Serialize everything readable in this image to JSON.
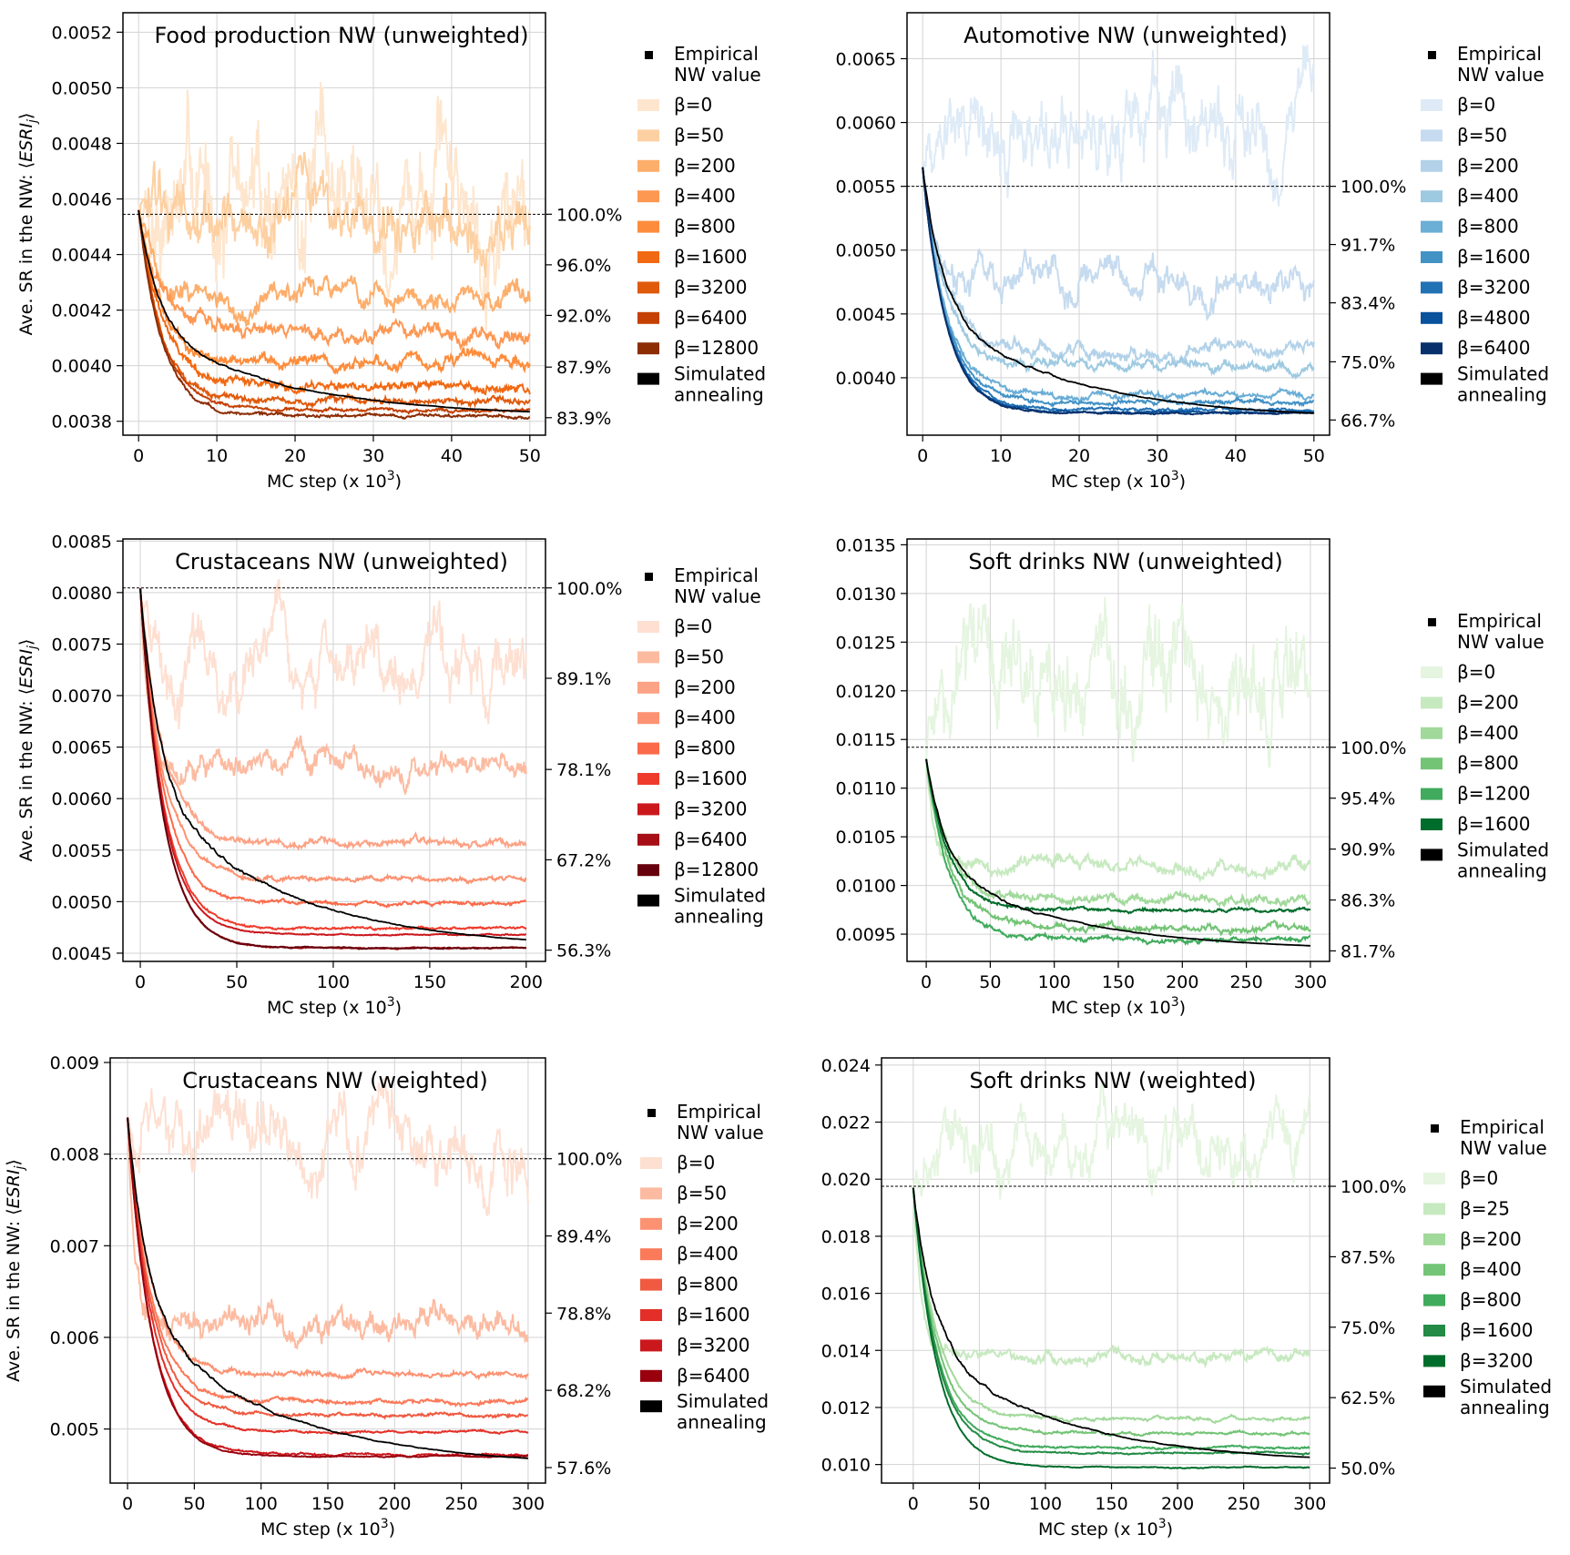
{
  "figure": {
    "ylabel_prefix": "Ave. SR in the NW: ⟨",
    "ylabel_math": "ESRI",
    "ylabel_sub": "j",
    "ylabel_suffix": "⟩",
    "xlabel_text": "MC step (x 10",
    "xlabel_exp": "3",
    "xlabel_close": ")",
    "beta_symbol": "β",
    "empirical_label": [
      "Empirical",
      "NW value"
    ],
    "sa_label": [
      "Simulated",
      "annealing"
    ]
  },
  "chart_data": [
    {
      "type": "line",
      "title": "Food production NW (unweighted)",
      "palette": "oranges",
      "xlim": [
        -2,
        52
      ],
      "ylim": [
        0.00375,
        0.00527
      ],
      "xticks": [
        "0",
        "10",
        "20",
        "30",
        "40",
        "50"
      ],
      "yticks": [
        "0.0038",
        "0.0040",
        "0.0042",
        "0.0044",
        "0.0046",
        "0.0048",
        "0.0050",
        "0.0052"
      ],
      "right_ticks": [
        {
          "label": "100.0%",
          "value": 0.004545
        },
        {
          "label": "96.0%",
          "value": 0.004363
        },
        {
          "label": "92.0%",
          "value": 0.004181
        },
        {
          "label": "87.9%",
          "value": 0.003995
        },
        {
          "label": "83.9%",
          "value": 0.003813
        }
      ],
      "empirical": 0.004545,
      "start": 0.00456,
      "xmax": 50,
      "series": [
        {
          "name": "β=0",
          "color": "#fee6ce",
          "plateau": 0.00462,
          "noise": 0.00036
        },
        {
          "name": "β=50",
          "color": "#fdd0a2",
          "plateau": 0.00451,
          "noise": 0.00018
        },
        {
          "name": "β=200",
          "color": "#fdae6b",
          "plateau": 0.00424,
          "noise": 7e-05
        },
        {
          "name": "β=400",
          "color": "#fd9853",
          "plateau": 0.00411,
          "noise": 5e-05
        },
        {
          "name": "β=800",
          "color": "#fd8d3c",
          "plateau": 0.00402,
          "noise": 4e-05
        },
        {
          "name": "β=1600",
          "color": "#f16913",
          "plateau": 0.00393,
          "noise": 3e-05
        },
        {
          "name": "β=3200",
          "color": "#e05a0c",
          "plateau": 0.00387,
          "noise": 2e-05
        },
        {
          "name": "β=6400",
          "color": "#c44103",
          "plateau": 0.00384,
          "noise": 1e-05
        },
        {
          "name": "β=12800",
          "color": "#8c2d04",
          "plateau": 0.00382,
          "noise": 1e-05
        }
      ],
      "simulated_annealing": {
        "color": "#000000",
        "end": 0.003815
      }
    },
    {
      "type": "line",
      "title": "Automotive NW (unweighted)",
      "palette": "blues",
      "xlim": [
        -2,
        52
      ],
      "ylim": [
        0.00355,
        0.00686
      ],
      "xticks": [
        "0",
        "10",
        "20",
        "30",
        "40",
        "50"
      ],
      "yticks": [
        "0.0040",
        "0.0045",
        "0.0050",
        "0.0055",
        "0.0060",
        "0.0065"
      ],
      "right_ticks": [
        {
          "label": "100.0%",
          "value": 0.0055
        },
        {
          "label": "91.7%",
          "value": 0.005044
        },
        {
          "label": "83.4%",
          "value": 0.004587
        },
        {
          "label": "75.0%",
          "value": 0.004125
        },
        {
          "label": "66.7%",
          "value": 0.003669
        }
      ],
      "empirical": 0.0055,
      "start": 0.00565,
      "xmax": 50,
      "series": [
        {
          "name": "β=0",
          "color": "#deebf7",
          "plateau": 0.006,
          "noise": 0.00055
        },
        {
          "name": "β=50",
          "color": "#c6dbef",
          "plateau": 0.00478,
          "noise": 0.00022
        },
        {
          "name": "β=200",
          "color": "#b3d2e9",
          "plateau": 0.00421,
          "noise": 9e-05
        },
        {
          "name": "β=400",
          "color": "#9ecae1",
          "plateau": 0.0041,
          "noise": 7e-05
        },
        {
          "name": "β=800",
          "color": "#6baed6",
          "plateau": 0.00386,
          "noise": 4e-05
        },
        {
          "name": "β=1600",
          "color": "#4292c6",
          "plateau": 0.00381,
          "noise": 3e-05
        },
        {
          "name": "β=3200",
          "color": "#2171b5",
          "plateau": 0.00375,
          "noise": 2e-05
        },
        {
          "name": "β=4800",
          "color": "#08519c",
          "plateau": 0.00373,
          "noise": 1e-05
        },
        {
          "name": "β=6400",
          "color": "#08306b",
          "plateau": 0.00372,
          "noise": 1e-05
        }
      ],
      "simulated_annealing": {
        "color": "#000000",
        "end": 0.00367
      }
    },
    {
      "type": "line",
      "title": "Crustaceans NW (unweighted)",
      "palette": "reds",
      "xlim": [
        -9,
        210
      ],
      "ylim": [
        0.00442,
        0.00852
      ],
      "xticks": [
        "0",
        "50",
        "100",
        "150",
        "200"
      ],
      "yticks": [
        "0.0045",
        "0.0050",
        "0.0055",
        "0.0060",
        "0.0065",
        "0.0070",
        "0.0075",
        "0.0080",
        "0.0085"
      ],
      "right_ticks": [
        {
          "label": "100.0%",
          "value": 0.008045
        },
        {
          "label": "89.1%",
          "value": 0.007168
        },
        {
          "label": "78.1%",
          "value": 0.006283
        },
        {
          "label": "67.2%",
          "value": 0.005406
        },
        {
          "label": "56.3%",
          "value": 0.004529
        }
      ],
      "empirical": 0.008045,
      "start": 0.00804,
      "xmax": 200,
      "series": [
        {
          "name": "β=0",
          "color": "#fee0d2",
          "plateau": 0.00725,
          "noise": 0.0005
        },
        {
          "name": "β=50",
          "color": "#fcbba1",
          "plateau": 0.00628,
          "noise": 0.0002
        },
        {
          "name": "β=200",
          "color": "#fca285",
          "plateau": 0.00556,
          "noise": 6e-05
        },
        {
          "name": "β=400",
          "color": "#fc9272",
          "plateau": 0.00522,
          "noise": 4e-05
        },
        {
          "name": "β=800",
          "color": "#fb6a4a",
          "plateau": 0.00498,
          "noise": 3e-05
        },
        {
          "name": "β=1600",
          "color": "#ef3b2c",
          "plateau": 0.00474,
          "noise": 2e-05
        },
        {
          "name": "β=3200",
          "color": "#cb181d",
          "plateau": 0.00468,
          "noise": 1e-05
        },
        {
          "name": "β=6400",
          "color": "#a50f15",
          "plateau": 0.00455,
          "noise": 1e-05
        },
        {
          "name": "β=12800",
          "color": "#67000d",
          "plateau": 0.00455,
          "noise": 1e-05
        }
      ],
      "simulated_annealing": {
        "color": "#000000",
        "end": 0.00454
      }
    },
    {
      "type": "line",
      "title": "Soft drinks NW (unweighted)",
      "palette": "greens",
      "xlim": [
        -15,
        315
      ],
      "ylim": [
        0.00922,
        0.01356
      ],
      "xticks": [
        "0",
        "50",
        "100",
        "150",
        "200",
        "250",
        "300"
      ],
      "yticks": [
        "0.0095",
        "0.0100",
        "0.0105",
        "0.0110",
        "0.0115",
        "0.0120",
        "0.0125",
        "0.0130",
        "0.0135"
      ],
      "right_ticks": [
        {
          "label": "100.0%",
          "value": 0.01142
        },
        {
          "label": "95.4%",
          "value": 0.010897
        },
        {
          "label": "90.9%",
          "value": 0.010374
        },
        {
          "label": "86.3%",
          "value": 0.009851
        },
        {
          "label": "81.7%",
          "value": 0.009328
        }
      ],
      "empirical": 0.01142,
      "start": 0.0113,
      "xmax": 300,
      "series": [
        {
          "name": "β=0",
          "color": "#e5f5e0",
          "plateau": 0.01215,
          "noise": 0.00085
        },
        {
          "name": "β=200",
          "color": "#c7e9c0",
          "plateau": 0.0102,
          "noise": 0.00012
        },
        {
          "name": "β=400",
          "color": "#a1d99b",
          "plateau": 0.00985,
          "noise": 8e-05
        },
        {
          "name": "β=800",
          "color": "#74c476",
          "plateau": 0.00957,
          "noise": 6e-05
        },
        {
          "name": "β=1200",
          "color": "#41ab5d",
          "plateau": 0.00945,
          "noise": 4e-05
        },
        {
          "name": "β=1600",
          "color": "#006d2c",
          "plateau": 0.00975,
          "noise": 3e-05
        }
      ],
      "simulated_annealing": {
        "color": "#000000",
        "end": 0.00933
      }
    },
    {
      "type": "line",
      "title": "Crustaceans NW (weighted)",
      "palette": "reds",
      "xlim": [
        -13,
        313
      ],
      "ylim": [
        0.00441,
        0.00905
      ],
      "xticks": [
        "0",
        "50",
        "100",
        "150",
        "200",
        "250",
        "300"
      ],
      "yticks": [
        "0.005",
        "0.006",
        "0.007",
        "0.008",
        "0.009"
      ],
      "right_ticks": [
        {
          "label": "100.0%",
          "value": 0.00795
        },
        {
          "label": "89.4%",
          "value": 0.007107
        },
        {
          "label": "78.8%",
          "value": 0.006265
        },
        {
          "label": "68.2%",
          "value": 0.005422
        },
        {
          "label": "57.6%",
          "value": 0.004579
        }
      ],
      "empirical": 0.00795,
      "start": 0.0084,
      "xmax": 300,
      "series": [
        {
          "name": "β=0",
          "color": "#fee0d2",
          "plateau": 0.0081,
          "noise": 0.0006
        },
        {
          "name": "β=50",
          "color": "#fcbba1",
          "plateau": 0.00615,
          "noise": 0.00025
        },
        {
          "name": "β=200",
          "color": "#fc9272",
          "plateau": 0.0056,
          "noise": 5e-05
        },
        {
          "name": "β=400",
          "color": "#fb7a5a",
          "plateau": 0.0053,
          "noise": 4e-05
        },
        {
          "name": "β=800",
          "color": "#ef5a40",
          "plateau": 0.00515,
          "noise": 3e-05
        },
        {
          "name": "β=1600",
          "color": "#e32f27",
          "plateau": 0.00497,
          "noise": 2e-05
        },
        {
          "name": "β=3200",
          "color": "#cb181d",
          "plateau": 0.00472,
          "noise": 2e-05
        },
        {
          "name": "β=6400",
          "color": "#99000d",
          "plateau": 0.0047,
          "noise": 1e-05
        }
      ],
      "simulated_annealing": {
        "color": "#000000",
        "end": 0.00458
      }
    },
    {
      "type": "line",
      "title": "Soft drinks NW (weighted)",
      "palette": "greens",
      "xlim": [
        -24,
        315
      ],
      "ylim": [
        0.00935,
        0.02425
      ],
      "xticks": [
        "0",
        "50",
        "100",
        "150",
        "200",
        "250",
        "300"
      ],
      "yticks": [
        "0.010",
        "0.012",
        "0.014",
        "0.016",
        "0.018",
        "0.020",
        "0.022",
        "0.024"
      ],
      "right_ticks": [
        {
          "label": "100.0%",
          "value": 0.01975
        },
        {
          "label": "87.5%",
          "value": 0.017281
        },
        {
          "label": "75.0%",
          "value": 0.014813
        },
        {
          "label": "62.5%",
          "value": 0.012344
        },
        {
          "label": "50.0%",
          "value": 0.009875
        }
      ],
      "empirical": 0.01975,
      "start": 0.0197,
      "xmax": 300,
      "series": [
        {
          "name": "β=0",
          "color": "#e5f5e0",
          "plateau": 0.0209,
          "noise": 0.0018
        },
        {
          "name": "β=25",
          "color": "#c7e9c0",
          "plateau": 0.0138,
          "noise": 0.00035
        },
        {
          "name": "β=200",
          "color": "#a1d99b",
          "plateau": 0.0116,
          "noise": 0.0001
        },
        {
          "name": "β=400",
          "color": "#74c476",
          "plateau": 0.0111,
          "noise": 8e-05
        },
        {
          "name": "β=800",
          "color": "#41ab5d",
          "plateau": 0.0106,
          "noise": 6e-05
        },
        {
          "name": "β=1600",
          "color": "#238b45",
          "plateau": 0.0104,
          "noise": 5e-05
        },
        {
          "name": "β=3200",
          "color": "#006d2c",
          "plateau": 0.0099,
          "noise": 3e-05
        }
      ],
      "simulated_annealing": {
        "color": "#000000",
        "end": 0.01
      }
    }
  ]
}
